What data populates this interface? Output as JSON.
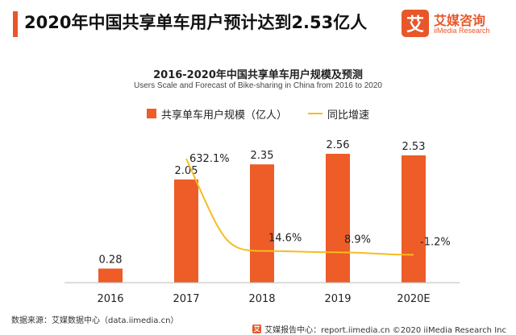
{
  "header": {
    "headline": "2020年中国共享单车用户预计达到2.53亿人"
  },
  "logo": {
    "mark": "艾",
    "name": "艾媒咨询",
    "sub": "iiMedia Research"
  },
  "footer": {
    "source": "数据来源：艾媒数据中心（data.iimedia.cn）",
    "report_mark": "艾",
    "report": "艾媒报告中心：report.iimedia.cn  ©2020  iiMedia Research  Inc"
  },
  "colors": {
    "accent": "#e8562a",
    "bar": "#ee5c27",
    "line": "#f5bd1f"
  },
  "chart_data": {
    "type": "bar",
    "title": "2016-2020年中国共享单车用户规模及预测",
    "subtitle": "Users Scale and Forecast of Bike-sharing in China from 2016 to 2020",
    "categories": [
      "2016",
      "2017",
      "2018",
      "2019",
      "2020E"
    ],
    "series": [
      {
        "name": "共享单车用户规模（亿人）",
        "type": "bar",
        "values": [
          0.28,
          2.05,
          2.35,
          2.56,
          2.53
        ],
        "labels": [
          "0.28",
          "2.05",
          "2.35",
          "2.56",
          "2.53"
        ]
      },
      {
        "name": "同比增速",
        "type": "line",
        "values": [
          632.1,
          14.6,
          8.9,
          -1.2
        ],
        "x": [
          "2017",
          "2018",
          "2019",
          "2020E"
        ],
        "labels": [
          "632.1%",
          "14.6%",
          "8.9%",
          "-1.2%"
        ]
      }
    ],
    "legend": "top-center",
    "grid": false
  }
}
